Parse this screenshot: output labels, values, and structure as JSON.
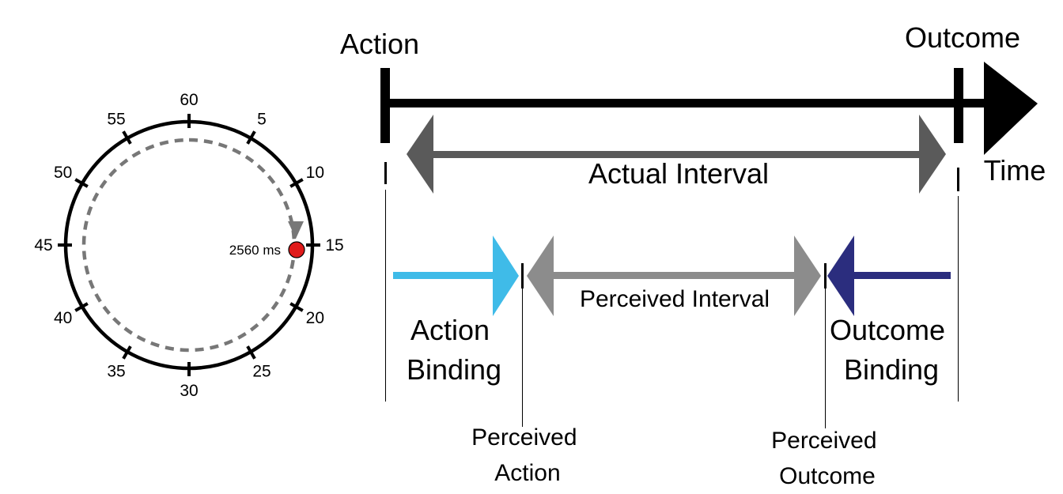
{
  "clock": {
    "tick_labels": [
      "60",
      "5",
      "10",
      "15",
      "20",
      "25",
      "30",
      "35",
      "40",
      "45",
      "50",
      "55"
    ],
    "time_label": "2560 ms"
  },
  "timeline": {
    "action_label": "Action",
    "outcome_label": "Outcome",
    "time_label": "Time",
    "actual_interval_label": "Actual Interval",
    "perceived_interval_label": "Perceived Interval",
    "action_binding_label": [
      "Action",
      "Binding"
    ],
    "outcome_binding_label": [
      "Outcome",
      "Binding"
    ],
    "perceived_action_label": [
      "Perceived",
      "Action"
    ],
    "perceived_outcome_label": [
      "Perceived",
      "Outcome"
    ]
  },
  "colors": {
    "action_binding_arrow": "#3fbbe8",
    "outcome_binding_arrow": "#2b2d7e",
    "actual_interval_arrow": "#5a5a5a",
    "perceived_interval_arrow": "#8c8c8c",
    "clock_marker": "#e01b1b"
  }
}
